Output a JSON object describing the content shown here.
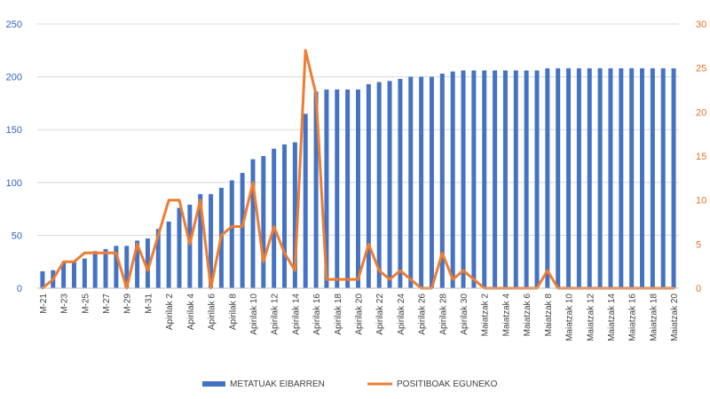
{
  "chart_data": {
    "type": "bar+line",
    "title": "",
    "categories": [
      "M-21",
      "M-22",
      "M-23",
      "M-24",
      "M-25",
      "M-26",
      "M-27",
      "M-28",
      "M-29",
      "M-30",
      "M-31",
      "Apirilak 1",
      "Apirilak 2",
      "Apirilak 3",
      "Apirilak 4",
      "Apirilak 5",
      "Apirilak 6",
      "Apirilak 7",
      "Apirilak 8",
      "Apirilak 9",
      "Apirilak 10",
      "Apirilak 11",
      "Apirilak 12",
      "Apirilak 13",
      "Apirilak 14",
      "Apirilak 15",
      "Apirilak 16",
      "Apirilak 17",
      "Apirilak 18",
      "Apirilak 19",
      "Apirilak 20",
      "Apirilak 21",
      "Apirilak 22",
      "Apirilak 23",
      "Apirilak 24",
      "Apirilak 25",
      "Apirilak 26",
      "Apirilak 27",
      "Apirilak 28",
      "Apirilak 29",
      "Apirilak 30",
      "Maiatzak 1",
      "Maiatzak 2",
      "Maiatzak 3",
      "Maiatzak 4",
      "Maiatzak 5",
      "Maiatzak 6",
      "Maiatzak 7",
      "Maiatzak 8",
      "Maiatzak 9",
      "Maiatzak 10",
      "Maiatzak 11",
      "Maiatzak 12",
      "Maiatzak 13",
      "Maiatzak 14",
      "Maiatzak 15",
      "Maiatzak 16",
      "Maiatzak 17",
      "Maiatzak 18",
      "Maiatzak 19",
      "Maiatzak 20"
    ],
    "x_tick_labels": [
      "M-21",
      "M-23",
      "M-25",
      "M-27",
      "M-29",
      "M-31",
      "Apirilak 2",
      "Apirilak 4",
      "Apirilak 6",
      "Apirilak 8",
      "Apirilak 10",
      "Apirilak 12",
      "Apirilak 14",
      "Apirilak 16",
      "Apirilak 18",
      "Apirilak 20",
      "Apirilak 22",
      "Apirilak 24",
      "Apirilak 26",
      "Apirilak 28",
      "Apirilak 30",
      "Maiatzak 2",
      "Maiatzak 4",
      "Maiatzak 6",
      "Maiatzak 8",
      "Maiatzak 10",
      "Maiatzak 12",
      "Maiatzak 14",
      "Maiatzak 16",
      "Maiatzak 18",
      "Maiatzak 20"
    ],
    "series": [
      {
        "name": "METATUAK EIBARREN",
        "kind": "bar",
        "axis": "left",
        "color": "#4472c4",
        "values": [
          16,
          17,
          24,
          25,
          28,
          35,
          37,
          40,
          40,
          45,
          47,
          56,
          63,
          76,
          79,
          89,
          89,
          95,
          102,
          109,
          122,
          125,
          132,
          136,
          138,
          165,
          186,
          188,
          188,
          188,
          188,
          193,
          195,
          196,
          198,
          200,
          200,
          200,
          203,
          205,
          206,
          206,
          206,
          206,
          206,
          206,
          206,
          206,
          208,
          208,
          208,
          208,
          208,
          208,
          208,
          208,
          208,
          208,
          208,
          208,
          208
        ]
      },
      {
        "name": "POSITIBOAK EGUNEKO",
        "kind": "line",
        "axis": "right",
        "color": "#ed7d31",
        "values": [
          0,
          1,
          3,
          3,
          4,
          4,
          4,
          4,
          0,
          5,
          2,
          6,
          10,
          10,
          5,
          10,
          0,
          6,
          7,
          7,
          12,
          3,
          7,
          4,
          2,
          27,
          22,
          1,
          1,
          1,
          1,
          5,
          2,
          1,
          2,
          1,
          0,
          0,
          4,
          1,
          2,
          1,
          0,
          0,
          0,
          0,
          0,
          0,
          2,
          0,
          0,
          0,
          0,
          0,
          0,
          0,
          0,
          0,
          0,
          0,
          0
        ]
      }
    ],
    "y_left": {
      "ylim": [
        0,
        250
      ],
      "ticks": [
        "0",
        "50",
        "100",
        "150",
        "200",
        "250"
      ],
      "color": "#2f62c2"
    },
    "y_right": {
      "ylim": [
        0,
        30
      ],
      "ticks": [
        "0",
        "5",
        "10",
        "15",
        "20",
        "25",
        "30"
      ],
      "color": "#e0712b"
    },
    "grid": true,
    "legend_position": "bottom",
    "legend": [
      "METATUAK EIBARREN",
      "POSITIBOAK EGUNEKO"
    ]
  }
}
